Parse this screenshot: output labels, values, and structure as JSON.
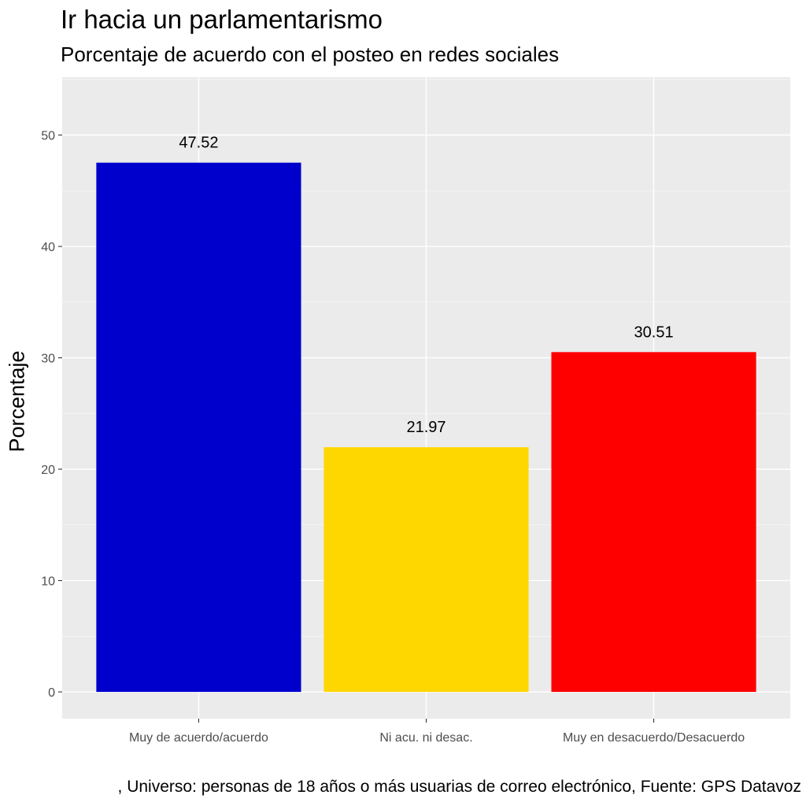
{
  "chart_data": {
    "type": "bar",
    "title": "Ir hacia un parlamentarismo",
    "subtitle": "Porcentaje de acuerdo con el posteo en redes sociales",
    "xlabel": "",
    "ylabel": "Porcentaje",
    "categories": [
      "Muy de acuerdo/acuerdo",
      "Ni acu. ni desac.",
      "Muy en desacuerdo/Desacuerdo"
    ],
    "values": [
      47.52,
      21.97,
      30.51
    ],
    "value_labels": [
      "47.52",
      "21.97",
      "30.51"
    ],
    "bar_colors": [
      "#0000CD",
      "#FFD700",
      "#FF0000"
    ],
    "ylim": [
      -2.4,
      55.2
    ],
    "yticks": [
      0,
      10,
      20,
      30,
      40,
      50
    ],
    "grid": true,
    "background": "#EBEBEB",
    "caption": ", Universo: personas de 18 años o más usuarias de correo electrónico, Fuente: GPS Datavoz"
  }
}
